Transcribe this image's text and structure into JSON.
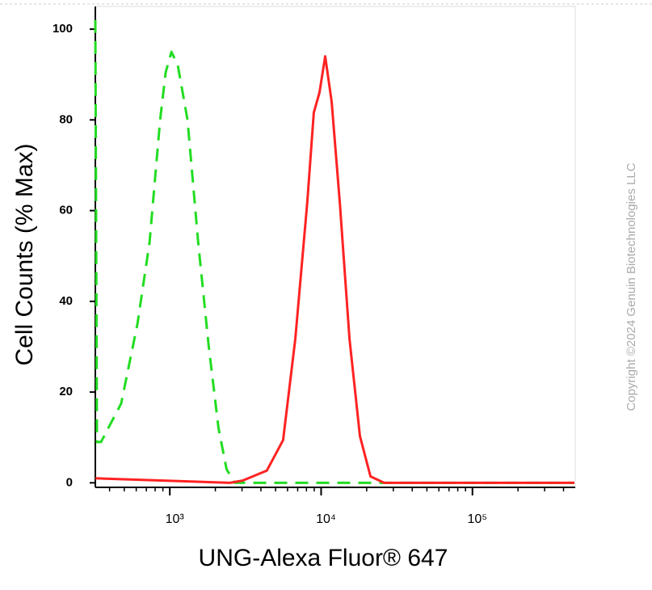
{
  "chart_data": {
    "type": "line",
    "x_label": "UNG-Alexa Fluor® 647",
    "y_label": "Cell Counts (% Max)",
    "copyright": "Copyright ©2024 Genuin Biotechnologies LLC",
    "x_log": true,
    "xlim": [
      322,
      478000
    ],
    "ylim": [
      -1,
      105
    ],
    "xticks": [
      {
        "value": 1000,
        "label": "10³"
      },
      {
        "value": 10000,
        "label": "10⁴"
      },
      {
        "value": 100000,
        "label": "10⁵"
      }
    ],
    "xminorticks": [
      400,
      500,
      600,
      700,
      800,
      900,
      2000,
      3000,
      4000,
      5000,
      6000,
      7000,
      8000,
      9000,
      20000,
      30000,
      40000,
      50000,
      60000,
      70000,
      80000,
      90000,
      200000,
      300000,
      400000
    ],
    "yticks": [
      0,
      20,
      40,
      60,
      80,
      100
    ],
    "series": [
      {
        "color": "#22dd22",
        "dash": true,
        "x": [
          322,
          330,
          351,
          477,
          611,
          735,
          863,
          940,
          1025,
          1130,
          1310,
          1540,
          1810,
          2100,
          2370,
          2680,
          472000
        ],
        "values": [
          102,
          9,
          9,
          17.5,
          35,
          53,
          80,
          90.5,
          95,
          92,
          80,
          53,
          30,
          12,
          3,
          0,
          0
        ]
      },
      {
        "color": "#ff2222",
        "dash": false,
        "x": [
          322,
          2500,
          3030,
          4380,
          5610,
          6750,
          8110,
          8950,
          9750,
          10640,
          11740,
          13280,
          15400,
          18060,
          21200,
          26100,
          472000
        ],
        "values": [
          1,
          0,
          0.5,
          2.7,
          9.4,
          31.7,
          62,
          81.6,
          86,
          94,
          84,
          62,
          31.7,
          10.3,
          1.4,
          0,
          0
        ]
      }
    ]
  }
}
